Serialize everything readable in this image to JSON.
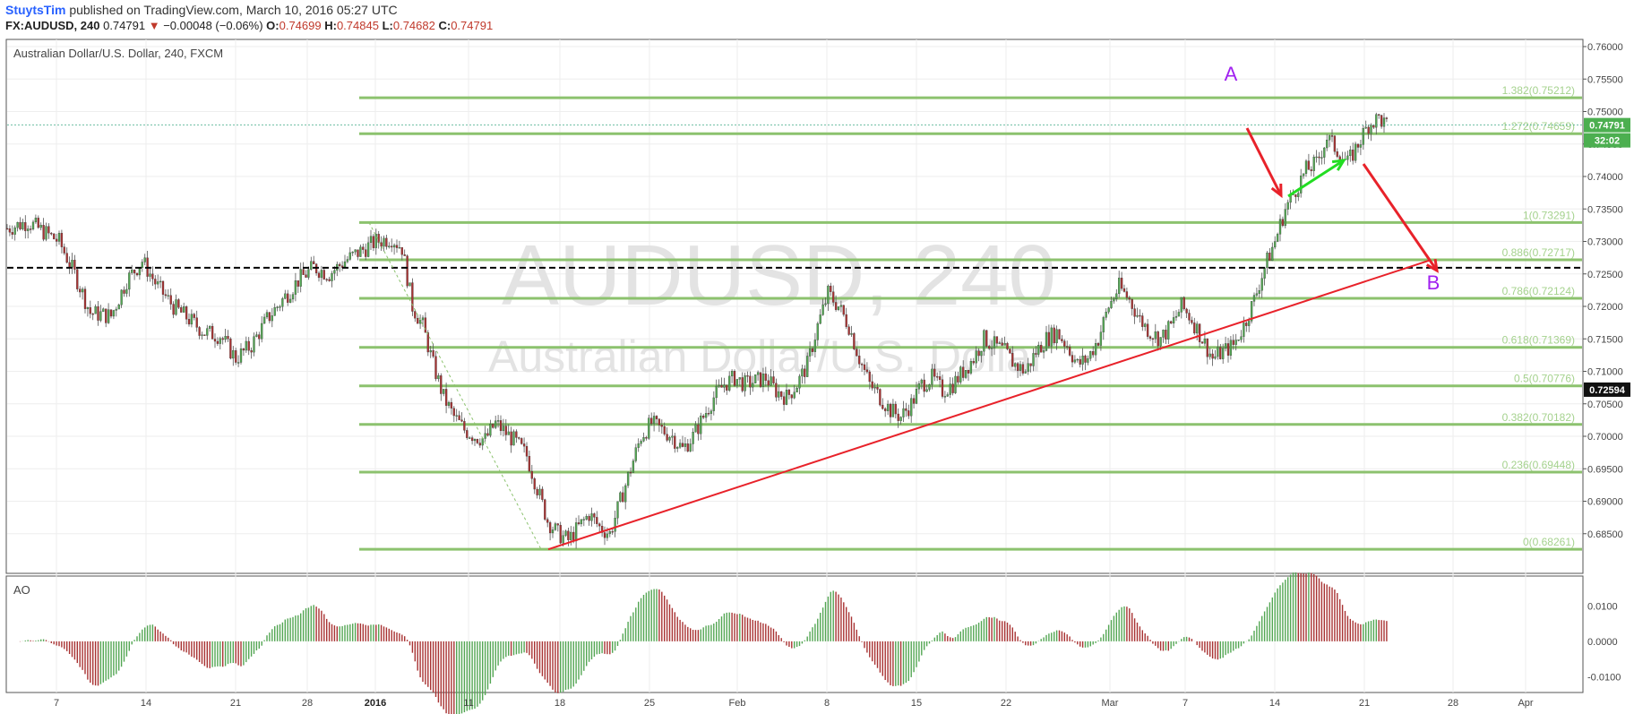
{
  "header": {
    "author": "StuytsTim",
    "published_text": " published on TradingView.com, March 10, 2016 05:27 UTC",
    "symbol": "FX:AUDUSD, 240",
    "last": "0.74791",
    "change": "−0.00048 (−0.06%)",
    "open_label": "O:",
    "open": "0.74699",
    "high_label": "H:",
    "high": "0.74845",
    "low_label": "L:",
    "low": "0.74682",
    "close_label": "C:",
    "close": "0.74791"
  },
  "chart": {
    "title": "Australian Dollar/U.S. Dollar, 240, FXCM",
    "watermark_symbol": "AUDUSD, 240",
    "watermark_name": "Australian Dollar/U.S. Dollar",
    "indicator_label": "AO",
    "wave_labels": [
      "A",
      "B"
    ],
    "last_price_label": "0.74791",
    "countdown_label": "32:02",
    "dashed_level_label": "0.72594",
    "colors": {
      "up": "#53a653",
      "down": "#a83232",
      "fib": "#8cc26e",
      "trendline": "#e8222a",
      "green_arrow": "#22dd22",
      "wave_label": "#a020f0"
    }
  },
  "chart_data": {
    "type": "candlestick",
    "symbol": "AUDUSD",
    "timeframe": "240",
    "ylim": [
      0.68,
      0.76
    ],
    "y_ticks": [
      "0.76000",
      "0.75500",
      "0.75000",
      "0.74500",
      "0.74000",
      "0.73500",
      "0.73000",
      "0.72500",
      "0.72000",
      "0.71500",
      "0.71000",
      "0.70500",
      "0.70000",
      "0.69500",
      "0.69000",
      "0.68500"
    ],
    "x_ticks": [
      "7",
      "14",
      "21",
      "28",
      "2016",
      "11",
      "18",
      "25",
      "Feb",
      "8",
      "15",
      "22",
      "Mar",
      "7",
      "14",
      "21",
      "28",
      "Apr"
    ],
    "fibonacci": [
      {
        "label": "1.382(0.75212)",
        "value": 0.75212
      },
      {
        "label": "1.272(0.74659)",
        "value": 0.74659
      },
      {
        "label": "1(0.73291)",
        "value": 0.73291
      },
      {
        "label": "0.886(0.72717)",
        "value": 0.72717
      },
      {
        "label": "0.786(0.72124)",
        "value": 0.72124
      },
      {
        "label": "0.618(0.71369)",
        "value": 0.71369
      },
      {
        "label": "0.5(0.70776)",
        "value": 0.70776
      },
      {
        "label": "0.382(0.70182)",
        "value": 0.70182
      },
      {
        "label": "0.236(0.69448)",
        "value": 0.69448
      },
      {
        "label": "0(0.68261)",
        "value": 0.68261
      }
    ],
    "dashed_level": 0.72594,
    "last_price": 0.74791,
    "path_points": [
      [
        0,
        0.732
      ],
      [
        8,
        0.733
      ],
      [
        14,
        0.7315
      ],
      [
        20,
        0.73
      ],
      [
        26,
        0.725
      ],
      [
        32,
        0.719
      ],
      [
        40,
        0.7185
      ],
      [
        46,
        0.724
      ],
      [
        52,
        0.727
      ],
      [
        58,
        0.723
      ],
      [
        64,
        0.72
      ],
      [
        70,
        0.718
      ],
      [
        76,
        0.716
      ],
      [
        82,
        0.7155
      ],
      [
        88,
        0.712
      ],
      [
        94,
        0.714
      ],
      [
        100,
        0.718
      ],
      [
        106,
        0.721
      ],
      [
        112,
        0.724
      ],
      [
        118,
        0.726
      ],
      [
        124,
        0.725
      ],
      [
        130,
        0.727
      ],
      [
        136,
        0.7285
      ],
      [
        142,
        0.73
      ],
      [
        148,
        0.7305
      ],
      [
        152,
        0.729
      ],
      [
        156,
        0.72
      ],
      [
        160,
        0.717
      ],
      [
        164,
        0.711
      ],
      [
        168,
        0.706
      ],
      [
        172,
        0.703
      ],
      [
        176,
        0.701
      ],
      [
        180,
        0.7
      ],
      [
        184,
        0.6995
      ],
      [
        188,
        0.702
      ],
      [
        192,
        0.7005
      ],
      [
        196,
        0.699
      ],
      [
        200,
        0.697
      ],
      [
        204,
        0.692
      ],
      [
        208,
        0.687
      ],
      [
        212,
        0.685
      ],
      [
        216,
        0.684
      ],
      [
        220,
        0.686
      ],
      [
        224,
        0.688
      ],
      [
        228,
        0.686
      ],
      [
        232,
        0.685
      ],
      [
        236,
        0.69
      ],
      [
        240,
        0.695
      ],
      [
        244,
        0.7
      ],
      [
        248,
        0.702
      ],
      [
        252,
        0.701
      ],
      [
        256,
        0.7
      ],
      [
        260,
        0.698
      ],
      [
        264,
        0.7
      ],
      [
        268,
        0.703
      ],
      [
        272,
        0.706
      ],
      [
        276,
        0.708
      ],
      [
        280,
        0.709
      ],
      [
        284,
        0.708
      ],
      [
        288,
        0.7085
      ],
      [
        292,
        0.709
      ],
      [
        296,
        0.707
      ],
      [
        300,
        0.706
      ],
      [
        304,
        0.708
      ],
      [
        308,
        0.711
      ],
      [
        312,
        0.717
      ],
      [
        316,
        0.722
      ],
      [
        320,
        0.72
      ],
      [
        324,
        0.717
      ],
      [
        328,
        0.712
      ],
      [
        332,
        0.708
      ],
      [
        336,
        0.706
      ],
      [
        340,
        0.704
      ],
      [
        344,
        0.703
      ],
      [
        348,
        0.705
      ],
      [
        352,
        0.708
      ],
      [
        356,
        0.709
      ],
      [
        360,
        0.707
      ],
      [
        364,
        0.708
      ],
      [
        368,
        0.71
      ],
      [
        372,
        0.712
      ],
      [
        376,
        0.715
      ],
      [
        380,
        0.714
      ],
      [
        384,
        0.713
      ],
      [
        388,
        0.711
      ],
      [
        392,
        0.71
      ],
      [
        396,
        0.713
      ],
      [
        400,
        0.715
      ],
      [
        404,
        0.716
      ],
      [
        408,
        0.714
      ],
      [
        412,
        0.711
      ],
      [
        416,
        0.712
      ],
      [
        420,
        0.715
      ],
      [
        424,
        0.72
      ],
      [
        428,
        0.723
      ],
      [
        432,
        0.721
      ],
      [
        436,
        0.718
      ],
      [
        440,
        0.716
      ],
      [
        444,
        0.715
      ],
      [
        448,
        0.717
      ],
      [
        452,
        0.72
      ],
      [
        456,
        0.718
      ],
      [
        460,
        0.715
      ],
      [
        464,
        0.712
      ],
      [
        468,
        0.713
      ],
      [
        472,
        0.714
      ],
      [
        476,
        0.717
      ],
      [
        480,
        0.721
      ],
      [
        484,
        0.726
      ],
      [
        488,
        0.73
      ],
      [
        492,
        0.735
      ],
      [
        496,
        0.738
      ],
      [
        500,
        0.741
      ],
      [
        504,
        0.742
      ],
      [
        508,
        0.746
      ],
      [
        512,
        0.744
      ],
      [
        516,
        0.742
      ],
      [
        520,
        0.745
      ],
      [
        524,
        0.748
      ],
      [
        528,
        0.749
      ],
      [
        531,
        0.7478
      ]
    ],
    "ao_range": [
      -0.0145,
      0.0185
    ],
    "ao_ticks": [
      "0.0100",
      "0.0000",
      "-0.0100"
    ],
    "annotations": {
      "wave_A": 0.755,
      "wave_B": 0.7235
    }
  }
}
